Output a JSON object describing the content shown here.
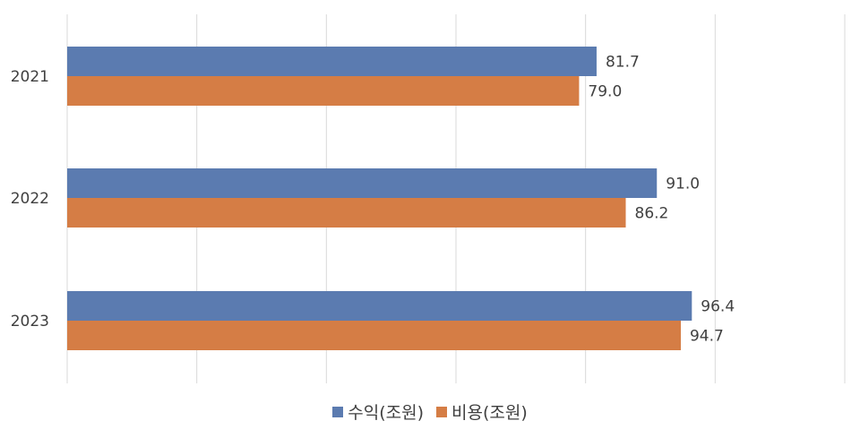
{
  "chart_data": {
    "type": "bar",
    "orientation": "horizontal",
    "categories": [
      "2021",
      "2022",
      "2023"
    ],
    "series": [
      {
        "name": "수익(조원)",
        "values": [
          81.7,
          91.0,
          96.4
        ],
        "color": "#5b7bb0"
      },
      {
        "name": "비용(조원)",
        "values": [
          79.0,
          86.2,
          94.7
        ],
        "color": "#d57d45"
      }
    ],
    "xlim": [
      0,
      120
    ],
    "grid": true,
    "legend_position": "bottom",
    "title": "",
    "xlabel": "",
    "ylabel": ""
  }
}
